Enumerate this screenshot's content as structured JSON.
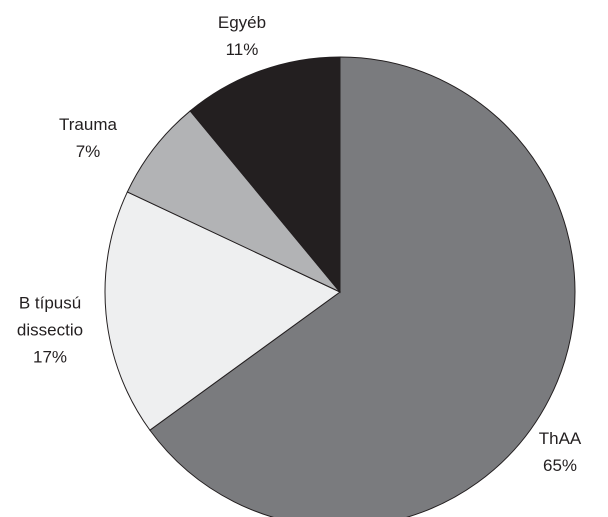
{
  "chart_data": {
    "type": "pie",
    "categories": [
      "ThAA",
      "B típusú dissectio",
      "Trauma",
      "Egyéb"
    ],
    "values": [
      65,
      17,
      7,
      11
    ],
    "value_labels": [
      "65%",
      "17%",
      "7%",
      "11%"
    ],
    "colors": [
      "#7a7b7e",
      "#eeeff0",
      "#b2b3b5",
      "#231f20"
    ]
  }
}
